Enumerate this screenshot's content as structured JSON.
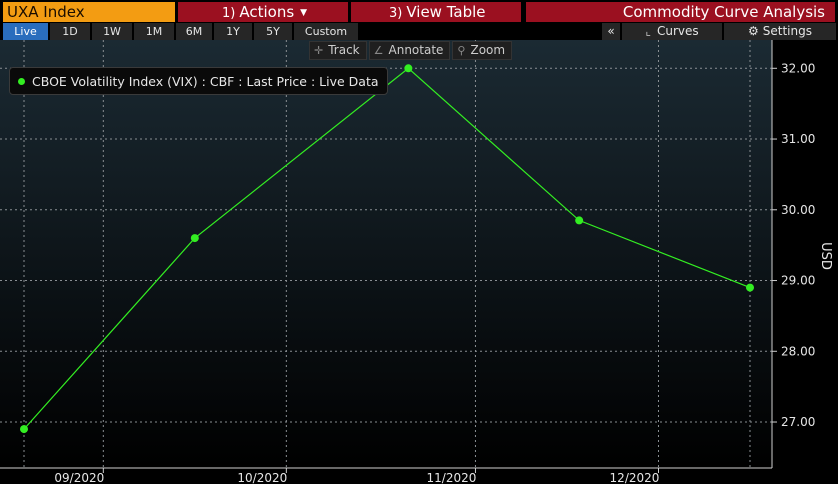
{
  "toolbar": {
    "ticker": "UXA Index",
    "actions_num": "1)",
    "actions_label": "Actions",
    "view_table_num": "3)",
    "view_table_label": "View Table",
    "title": "Commodity Curve Analysis"
  },
  "periods": [
    "Live",
    "1D",
    "1W",
    "1M",
    "6M",
    "1Y",
    "5Y",
    "Custom"
  ],
  "active_period": "Live",
  "controls": {
    "collapse": "«",
    "curves": "Curves",
    "settings": "Settings"
  },
  "chart_tools": {
    "track": "Track",
    "annotate": "Annotate",
    "zoom": "Zoom"
  },
  "colors": {
    "series": "#33ee22",
    "accent_orange": "#f39c12",
    "accent_red": "#9b1020",
    "active_blue": "#2a6dbd"
  },
  "chart_data": {
    "type": "line",
    "series": [
      {
        "name": "CBOE Volatility Index (VIX) : CBF : Last Price : Live Data",
        "points": [
          {
            "x": "2020-08-19",
            "y": 26.9
          },
          {
            "x": "2020-09-16",
            "y": 29.6
          },
          {
            "x": "2020-10-21",
            "y": 32.0
          },
          {
            "x": "2020-11-18",
            "y": 29.85
          },
          {
            "x": "2020-12-16",
            "y": 28.9
          }
        ]
      }
    ],
    "x_ticks": [
      "09/2020",
      "10/2020",
      "11/2020",
      "12/2020"
    ],
    "y_ticks": [
      "27.00",
      "28.00",
      "29.00",
      "30.00",
      "31.00",
      "32.00"
    ],
    "ylabel": "USD",
    "ylim": [
      26.35,
      32.4
    ],
    "grid": true,
    "legend": "top-left"
  }
}
